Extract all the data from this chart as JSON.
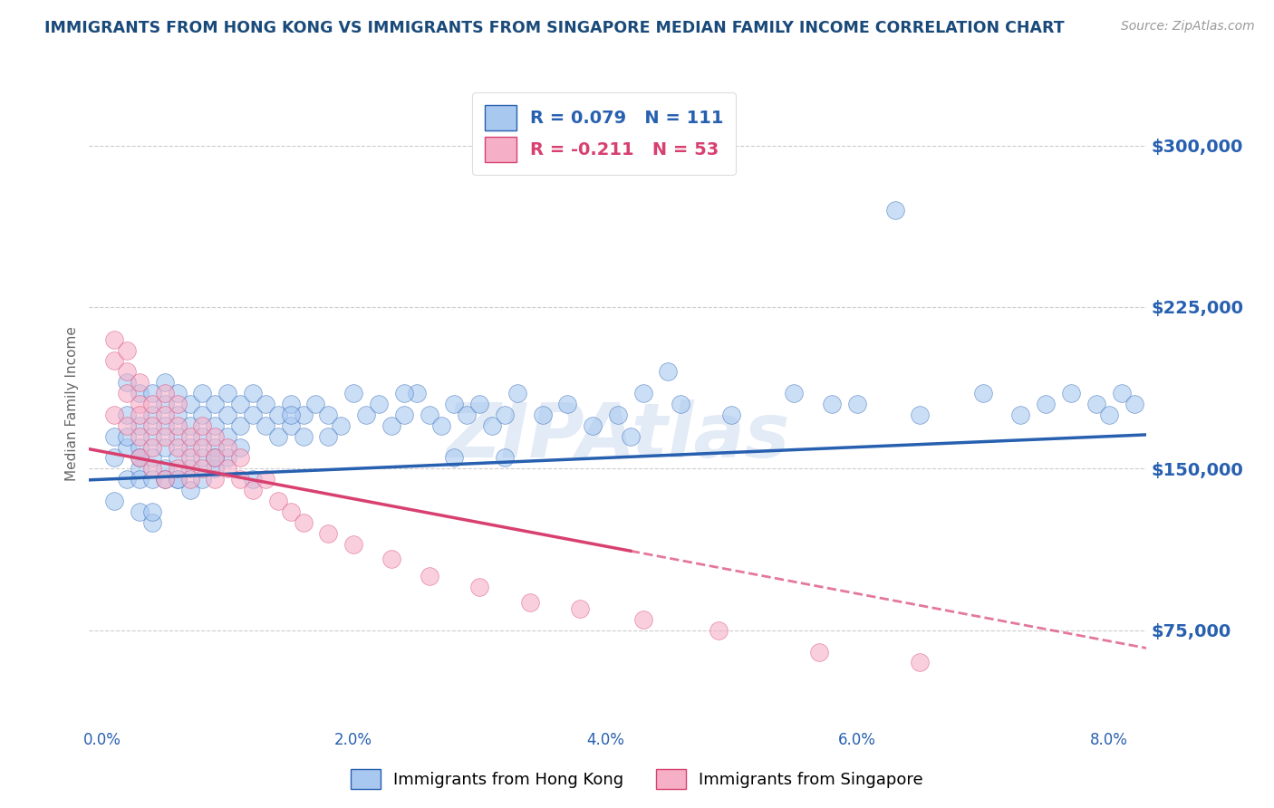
{
  "title": "IMMIGRANTS FROM HONG KONG VS IMMIGRANTS FROM SINGAPORE MEDIAN FAMILY INCOME CORRELATION CHART",
  "source_text": "Source: ZipAtlas.com",
  "ylabel": "Median Family Income",
  "watermark": "ZIPAtlas",
  "xlim": [
    -0.001,
    0.083
  ],
  "ylim": [
    30000,
    330000
  ],
  "yticks": [
    75000,
    150000,
    225000,
    300000
  ],
  "ytick_labels": [
    "$75,000",
    "$150,000",
    "$225,000",
    "$300,000"
  ],
  "xticks": [
    0.0,
    0.01,
    0.02,
    0.03,
    0.04,
    0.05,
    0.06,
    0.07,
    0.08
  ],
  "xtick_labels": [
    "0.0%",
    "",
    "2.0%",
    "",
    "4.0%",
    "",
    "6.0%",
    "",
    "8.0%"
  ],
  "hk_color": "#A8C8F0",
  "sg_color": "#F5B0C8",
  "hk_line_color": "#2860B0",
  "sg_line_color": "#D84070",
  "sg_line_dash_color": "#E8A0B8",
  "hk_R": "0.079",
  "hk_N": "111",
  "sg_R": "-0.211",
  "sg_N": "53",
  "legend_label_hk": "Immigrants from Hong Kong",
  "legend_label_sg": "Immigrants from Singapore",
  "title_color": "#1A4A7A",
  "axis_color": "#2860B0",
  "sg_axis_color": "#D84070",
  "grid_color": "#CCCCCC",
  "hk_line_intercept": 145000,
  "hk_line_slope": 250000,
  "sg_line_intercept": 158000,
  "sg_line_slope": -1100000,
  "hk_scatter_x": [
    0.001,
    0.001,
    0.001,
    0.002,
    0.002,
    0.002,
    0.002,
    0.003,
    0.003,
    0.003,
    0.003,
    0.003,
    0.003,
    0.004,
    0.004,
    0.004,
    0.004,
    0.004,
    0.004,
    0.005,
    0.005,
    0.005,
    0.005,
    0.005,
    0.005,
    0.006,
    0.006,
    0.006,
    0.006,
    0.006,
    0.007,
    0.007,
    0.007,
    0.007,
    0.007,
    0.008,
    0.008,
    0.008,
    0.008,
    0.009,
    0.009,
    0.009,
    0.009,
    0.01,
    0.01,
    0.01,
    0.01,
    0.011,
    0.011,
    0.011,
    0.012,
    0.012,
    0.013,
    0.013,
    0.014,
    0.014,
    0.015,
    0.015,
    0.016,
    0.016,
    0.017,
    0.018,
    0.019,
    0.02,
    0.021,
    0.022,
    0.023,
    0.024,
    0.025,
    0.026,
    0.027,
    0.028,
    0.029,
    0.03,
    0.031,
    0.032,
    0.033,
    0.035,
    0.037,
    0.039,
    0.041,
    0.043,
    0.046,
    0.05,
    0.055,
    0.06,
    0.065,
    0.07,
    0.073,
    0.075,
    0.077,
    0.079,
    0.08,
    0.081,
    0.082,
    0.063,
    0.045,
    0.028,
    0.015,
    0.008,
    0.004,
    0.003,
    0.002,
    0.006,
    0.009,
    0.012,
    0.018,
    0.024,
    0.032,
    0.042,
    0.058
  ],
  "hk_scatter_y": [
    135000,
    165000,
    155000,
    145000,
    175000,
    160000,
    190000,
    150000,
    170000,
    145000,
    185000,
    160000,
    130000,
    175000,
    155000,
    145000,
    165000,
    185000,
    125000,
    170000,
    150000,
    145000,
    180000,
    160000,
    190000,
    165000,
    145000,
    175000,
    155000,
    185000,
    170000,
    150000,
    160000,
    180000,
    140000,
    175000,
    155000,
    165000,
    185000,
    170000,
    150000,
    160000,
    180000,
    175000,
    155000,
    165000,
    185000,
    170000,
    180000,
    160000,
    175000,
    185000,
    170000,
    180000,
    175000,
    165000,
    180000,
    170000,
    175000,
    165000,
    180000,
    175000,
    170000,
    185000,
    175000,
    180000,
    170000,
    175000,
    185000,
    175000,
    170000,
    180000,
    175000,
    180000,
    170000,
    175000,
    185000,
    175000,
    180000,
    170000,
    175000,
    185000,
    180000,
    175000,
    185000,
    180000,
    175000,
    185000,
    175000,
    180000,
    185000,
    180000,
    175000,
    185000,
    180000,
    270000,
    195000,
    155000,
    175000,
    145000,
    130000,
    155000,
    165000,
    145000,
    155000,
    145000,
    165000,
    185000,
    155000,
    165000,
    180000
  ],
  "sg_scatter_x": [
    0.001,
    0.001,
    0.001,
    0.002,
    0.002,
    0.002,
    0.002,
    0.003,
    0.003,
    0.003,
    0.003,
    0.003,
    0.004,
    0.004,
    0.004,
    0.004,
    0.005,
    0.005,
    0.005,
    0.005,
    0.006,
    0.006,
    0.006,
    0.006,
    0.007,
    0.007,
    0.007,
    0.008,
    0.008,
    0.008,
    0.009,
    0.009,
    0.009,
    0.01,
    0.01,
    0.011,
    0.011,
    0.012,
    0.013,
    0.014,
    0.015,
    0.016,
    0.018,
    0.02,
    0.023,
    0.026,
    0.03,
    0.034,
    0.038,
    0.043,
    0.049,
    0.057,
    0.065
  ],
  "sg_scatter_y": [
    200000,
    175000,
    210000,
    185000,
    195000,
    170000,
    205000,
    165000,
    180000,
    190000,
    155000,
    175000,
    170000,
    160000,
    180000,
    150000,
    165000,
    175000,
    145000,
    185000,
    160000,
    170000,
    150000,
    180000,
    155000,
    165000,
    145000,
    160000,
    150000,
    170000,
    145000,
    155000,
    165000,
    150000,
    160000,
    145000,
    155000,
    140000,
    145000,
    135000,
    130000,
    125000,
    120000,
    115000,
    108000,
    100000,
    95000,
    88000,
    85000,
    80000,
    75000,
    65000,
    60000
  ]
}
